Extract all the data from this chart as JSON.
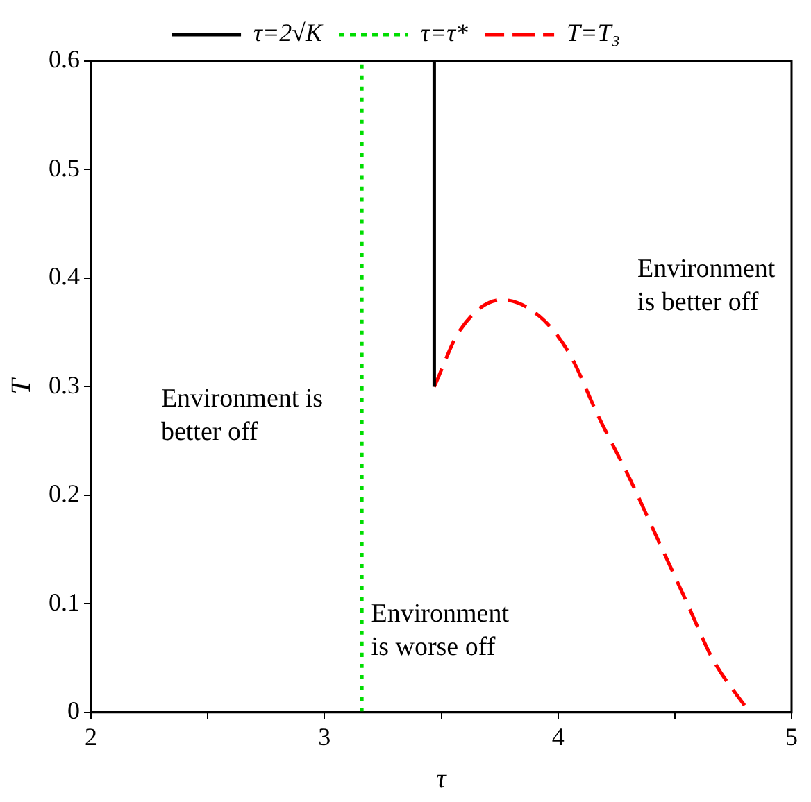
{
  "chart_data": {
    "type": "line",
    "xlabel": "τ",
    "ylabel": "T",
    "xlim": [
      2,
      5
    ],
    "xticks": [
      2,
      {
        "value": 2.5,
        "label": null
      },
      3,
      {
        "value": 3.5,
        "label": null
      },
      4,
      {
        "value": 4.5,
        "label": null
      },
      5
    ],
    "ylim": [
      0,
      0.6
    ],
    "yticks": [
      0,
      0.1,
      0.2,
      0.3,
      0.4,
      0.5,
      0.6
    ],
    "grid": false,
    "legend": "top",
    "marker": "none",
    "series": [
      {
        "name": "τ=2√K",
        "color": "#000000",
        "line_style": "solid",
        "x": [
          3.47,
          3.47
        ],
        "values": [
          0.3,
          0.6
        ]
      },
      {
        "name": "τ=τ*",
        "color": "#00dd00",
        "line_style": "dotted",
        "x": [
          3.16,
          3.16
        ],
        "values": [
          0,
          0.6
        ]
      },
      {
        "name": "T=T₃",
        "color": "#ff0000",
        "line_style": "dashed",
        "x": [
          3.47,
          3.58,
          3.76,
          3.92,
          4.05,
          4.17,
          4.31,
          4.43,
          4.55,
          4.66,
          4.82
        ],
        "values": [
          0.3,
          0.352,
          0.38,
          0.365,
          0.33,
          0.274,
          0.214,
          0.158,
          0.102,
          0.05,
          0
        ]
      }
    ],
    "annotations": [
      "Environment is better off",
      "Environment is better off",
      "Environment is worse off"
    ]
  }
}
